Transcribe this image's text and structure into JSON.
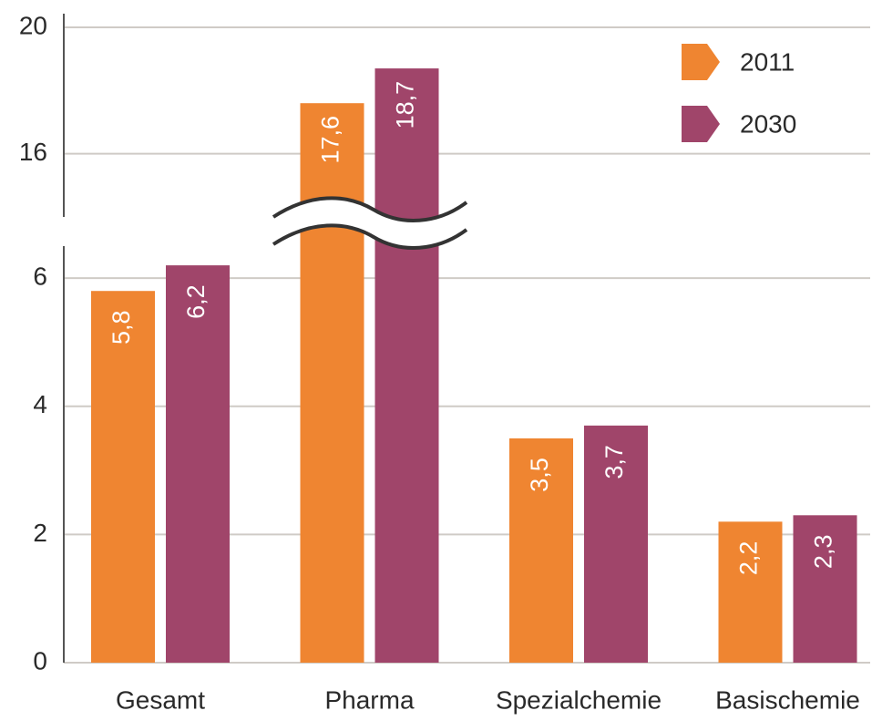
{
  "chart_data": {
    "type": "bar",
    "categories": [
      "Gesamt",
      "Pharma",
      "Spezialchemie",
      "Basischemie"
    ],
    "series": [
      {
        "name": "2011",
        "color": "#ef8531",
        "values": [
          5.8,
          17.6,
          3.5,
          2.2
        ],
        "value_labels": [
          "5,8",
          "17,6",
          "3,5",
          "2,2"
        ]
      },
      {
        "name": "2030",
        "color": "#a0456a",
        "values": [
          6.2,
          18.7,
          3.7,
          2.3
        ],
        "value_labels": [
          "6,2",
          "18,7",
          "3,7",
          "2,3"
        ]
      }
    ],
    "ylim": [
      0,
      20
    ],
    "axis_break": [
      6.5,
      14
    ],
    "yticks": [
      0,
      2,
      4,
      6,
      16,
      20
    ],
    "grid": true,
    "legend": "top-right"
  }
}
